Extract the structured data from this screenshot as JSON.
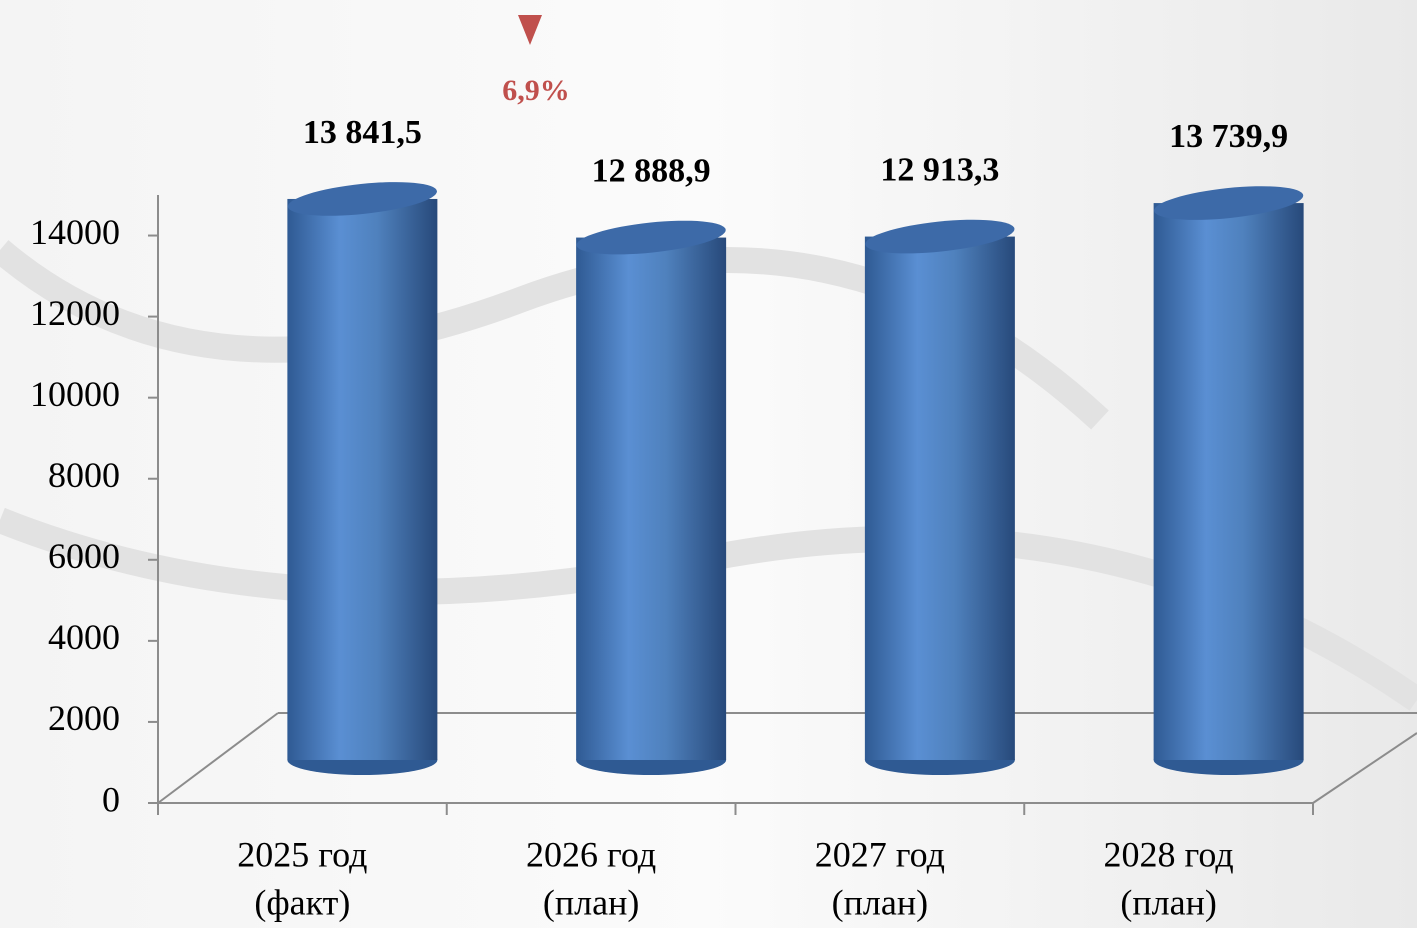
{
  "chart_data": {
    "type": "bar",
    "categories": [
      [
        "2025 год",
        "(факт)"
      ],
      [
        "2026 год",
        "(план)"
      ],
      [
        "2027 год",
        "(план)"
      ],
      [
        "2028 год",
        "(план)"
      ]
    ],
    "values": [
      13841.5,
      12888.9,
      12913.3,
      13739.9
    ],
    "value_labels": [
      "13 841,5",
      "12 888,9",
      "12 913,3",
      "13 739,9"
    ],
    "color": "#4f81bd",
    "ylim": [
      0,
      15000
    ],
    "yticks": [
      0,
      2000,
      4000,
      6000,
      8000,
      10000,
      12000,
      14000
    ],
    "annotation": "6,9%",
    "annotation_color": "#c0504d"
  }
}
